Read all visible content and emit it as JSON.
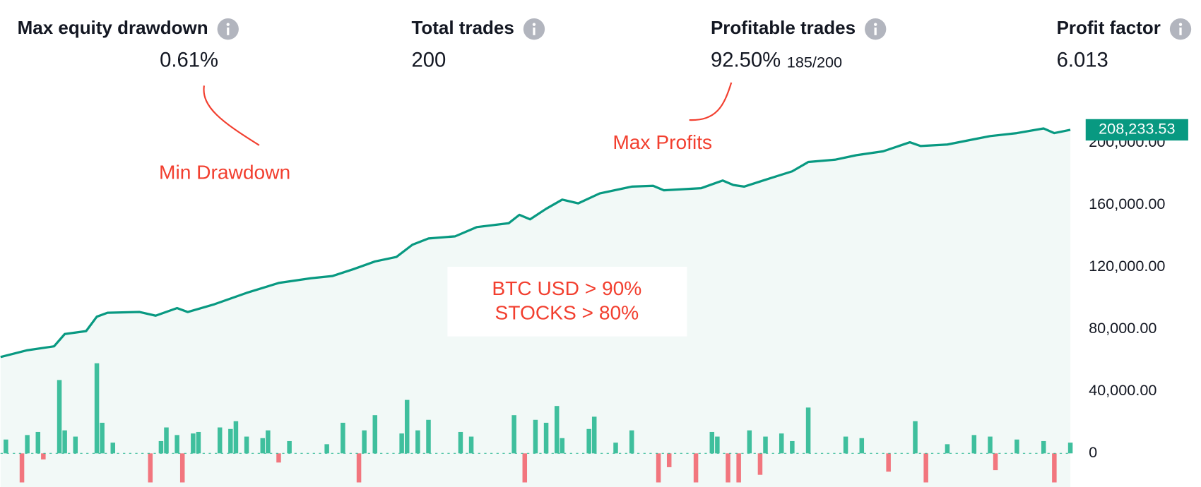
{
  "metrics": [
    {
      "label": "Max equity drawdown",
      "value": "0.61%"
    },
    {
      "label": "Total trades",
      "value": "200"
    },
    {
      "label": "Profitable trades",
      "value": "92.50%",
      "detail": "185/200"
    },
    {
      "label": "Profit factor",
      "value": "6.013"
    }
  ],
  "annotations": {
    "min_drawdown": "Min Drawdown",
    "max_profits": "Max Profits",
    "note_lines": [
      "BTC USD > 90%",
      "STOCKS > 80%"
    ],
    "color": "#f23f2f"
  },
  "chart_data": {
    "type": "line",
    "xlim": [
      0,
      200
    ],
    "ylim": [
      -21650,
      222900
    ],
    "yticks": [
      0,
      {
        "value": 40000,
        "label": "40,000.00"
      },
      {
        "value": 80000,
        "label": "80,000.00"
      },
      {
        "value": 120000,
        "label": "120,000.00"
      },
      {
        "value": 160000,
        "label": "160,000.00"
      },
      {
        "value": 200000,
        "label": "200,000.00"
      }
    ],
    "area_color": "#f2f9f7",
    "series": [
      {
        "color": "#089981",
        "x": [
          0,
          5,
          10,
          12,
          16,
          18,
          20,
          26,
          29,
          33,
          35,
          40,
          46,
          52,
          58,
          62,
          66,
          70,
          74,
          77,
          80,
          85,
          89,
          95,
          97,
          99,
          102,
          105,
          108,
          112,
          118,
          122,
          124,
          131,
          135,
          137,
          139,
          143,
          148,
          151,
          156,
          160,
          165,
          170,
          172,
          177,
          182,
          185,
          190,
          195,
          197,
          200
        ],
        "values": [
          62000,
          66400,
          68900,
          76800,
          78700,
          88000,
          90500,
          91000,
          88600,
          93500,
          91000,
          96000,
          103300,
          109700,
          112700,
          114100,
          118600,
          123500,
          126400,
          134300,
          138300,
          139700,
          145600,
          148100,
          153500,
          150600,
          157400,
          163300,
          160900,
          167300,
          171700,
          172200,
          169300,
          170700,
          175600,
          172700,
          171700,
          176100,
          181500,
          187500,
          189000,
          191900,
          194400,
          200200,
          197800,
          198800,
          202200,
          204200,
          206100,
          209100,
          206100,
          208233.53
        ]
      }
    ],
    "last_price": {
      "value": 208233.53,
      "label": "208,233.53"
    },
    "trades": {
      "up_color": "#3fbf9d",
      "down_color": "#f2767e",
      "x": [
        1,
        4,
        5,
        7,
        8,
        11,
        12,
        14,
        18,
        19,
        21,
        28,
        30,
        31,
        33,
        34,
        36,
        37,
        41,
        43,
        44,
        46,
        49,
        50,
        52,
        54,
        61,
        64,
        67,
        68,
        70,
        75,
        76,
        78,
        80,
        86,
        88,
        96,
        98,
        100,
        102,
        104,
        105,
        110,
        111,
        115,
        118,
        123,
        125,
        130,
        133,
        134,
        136,
        138,
        140,
        142,
        143,
        146,
        148,
        151,
        158,
        161,
        166,
        171,
        173,
        177,
        182,
        185,
        186,
        190,
        195,
        197,
        200
      ],
      "values": [
        8900,
        -18700,
        11800,
        13800,
        -3900,
        47200,
        14800,
        10800,
        58000,
        19700,
        6900,
        -18700,
        7900,
        16700,
        11800,
        -18700,
        12800,
        13800,
        16700,
        15700,
        20700,
        10800,
        9800,
        14800,
        -5900,
        7900,
        5900,
        19700,
        -18700,
        14800,
        24600,
        12800,
        34400,
        14800,
        21600,
        13800,
        10800,
        24600,
        -18700,
        21600,
        19700,
        30500,
        9800,
        15700,
        23600,
        6900,
        14800,
        -18700,
        -8900,
        -18700,
        13800,
        10800,
        -18700,
        -18700,
        14800,
        -13800,
        10800,
        12800,
        7900,
        29500,
        10800,
        9800,
        -11800,
        20700,
        -18700,
        5900,
        11800,
        10800,
        -10800,
        8900,
        7900,
        -18700,
        6900
      ]
    }
  }
}
